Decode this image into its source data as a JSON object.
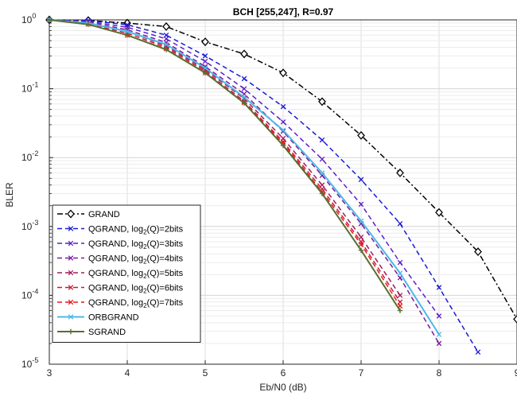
{
  "chart_data": {
    "type": "line",
    "title": "BCH [255,247], R=0.97",
    "xlabel": "Eb/N0 (dB)",
    "ylabel": "BLER",
    "xlim": [
      3,
      9
    ],
    "ylim": [
      1e-05,
      1
    ],
    "yscale": "log",
    "grid": true,
    "legend_position": "bottom-left",
    "x_ticks": [
      "3",
      "4",
      "5",
      "6",
      "7",
      "8",
      "9"
    ],
    "y_ticks": [
      {
        "base": "10",
        "exp": "-5"
      },
      {
        "base": "10",
        "exp": "-4"
      },
      {
        "base": "10",
        "exp": "-3"
      },
      {
        "base": "10",
        "exp": "-2"
      },
      {
        "base": "10",
        "exp": "-1"
      },
      {
        "base": "10",
        "exp": "0"
      }
    ],
    "series": [
      {
        "name": "GRAND",
        "color": "#000000",
        "dash": "dashdot",
        "marker": "diamond",
        "x": [
          3,
          3.5,
          4,
          4.5,
          5,
          5.5,
          6,
          6.5,
          7,
          7.5,
          8,
          8.5,
          9
        ],
        "y": [
          1.0,
          0.98,
          0.9,
          0.8,
          0.48,
          0.32,
          0.17,
          0.065,
          0.021,
          0.006,
          0.0016,
          0.00043,
          4.5e-05
        ]
      },
      {
        "name": "QGRAND, log2(Q)=2bits",
        "label_main": "QGRAND, log",
        "label_sub": "2",
        "label_tail": "(Q)=2bits",
        "color": "#1a1ad6",
        "dash": "dashed",
        "marker": "x",
        "x": [
          3,
          3.5,
          4,
          4.5,
          5,
          5.5,
          6,
          6.5,
          7,
          7.5,
          8,
          8.5
        ],
        "y": [
          1.0,
          0.98,
          0.85,
          0.6,
          0.3,
          0.14,
          0.055,
          0.018,
          0.0048,
          0.0011,
          0.00013,
          1.5e-05
        ]
      },
      {
        "name": "QGRAND, log2(Q)=3bits",
        "label_main": "QGRAND, log",
        "label_sub": "2",
        "label_tail": "(Q)=3bits",
        "color": "#5a1ec8",
        "dash": "dashed",
        "marker": "x",
        "x": [
          3,
          3.5,
          4,
          4.5,
          5,
          5.5,
          6,
          6.5,
          7,
          7.5,
          8
        ],
        "y": [
          1.0,
          0.95,
          0.78,
          0.53,
          0.25,
          0.1,
          0.033,
          0.0095,
          0.0021,
          0.0003,
          5e-05
        ]
      },
      {
        "name": "QGRAND, log2(Q)=4bits",
        "label_main": "QGRAND, log",
        "label_sub": "2",
        "label_tail": "(Q)=4bits",
        "color": "#7a1aa0",
        "dash": "dashed",
        "marker": "x",
        "x": [
          3,
          3.5,
          4,
          4.5,
          5,
          5.5,
          6,
          6.5,
          7,
          7.5,
          8
        ],
        "y": [
          1.0,
          0.93,
          0.72,
          0.47,
          0.21,
          0.084,
          0.024,
          0.0055,
          0.0011,
          0.00018,
          2e-05
        ]
      },
      {
        "name": "QGRAND, log2(Q)=5bits",
        "label_main": "QGRAND, log",
        "label_sub": "2",
        "label_tail": "(Q)=5bits",
        "color": "#a01a5a",
        "dash": "dashed",
        "marker": "x",
        "x": [
          3,
          3.5,
          4,
          4.5,
          5,
          5.5,
          6,
          6.5,
          7,
          7.5
        ],
        "y": [
          1.0,
          0.9,
          0.68,
          0.42,
          0.19,
          0.072,
          0.019,
          0.004,
          0.0007,
          0.0001
        ]
      },
      {
        "name": "QGRAND, log2(Q)=6bits",
        "label_main": "QGRAND, log",
        "label_sub": "2",
        "label_tail": "(Q)=6bits",
        "color": "#c81a3c",
        "dash": "dashed",
        "marker": "x",
        "x": [
          3,
          3.5,
          4,
          4.5,
          5,
          5.5,
          6,
          6.5,
          7,
          7.5
        ],
        "y": [
          1.0,
          0.88,
          0.64,
          0.4,
          0.18,
          0.066,
          0.017,
          0.0035,
          0.0006,
          8e-05
        ]
      },
      {
        "name": "QGRAND, log2(Q)=7bits",
        "label_main": "QGRAND, log",
        "label_sub": "2",
        "label_tail": "(Q)=7bits",
        "color": "#e61a1a",
        "dash": "dashed",
        "marker": "x",
        "x": [
          3,
          3.5,
          4,
          4.5,
          5,
          5.5,
          6,
          6.5,
          7,
          7.5
        ],
        "y": [
          1.0,
          0.87,
          0.6,
          0.38,
          0.17,
          0.063,
          0.016,
          0.0032,
          0.00055,
          7e-05
        ]
      },
      {
        "name": "ORBGRAND",
        "color": "#4db8e8",
        "dash": "solid",
        "marker": "x",
        "x": [
          3,
          3.5,
          4,
          4.5,
          5,
          5.5,
          6,
          6.5,
          7,
          7.5,
          8
        ],
        "y": [
          1.0,
          0.9,
          0.68,
          0.44,
          0.2,
          0.075,
          0.025,
          0.006,
          0.0012,
          0.00021,
          2.7e-05
        ]
      },
      {
        "name": "SGRAND",
        "color": "#5a6e32",
        "dash": "solid",
        "marker": "plus",
        "x": [
          3,
          3.5,
          4,
          4.5,
          5,
          5.5,
          6,
          6.5,
          7,
          7.5
        ],
        "y": [
          1.0,
          0.86,
          0.6,
          0.37,
          0.17,
          0.062,
          0.015,
          0.003,
          0.00045,
          6e-05
        ]
      }
    ]
  }
}
